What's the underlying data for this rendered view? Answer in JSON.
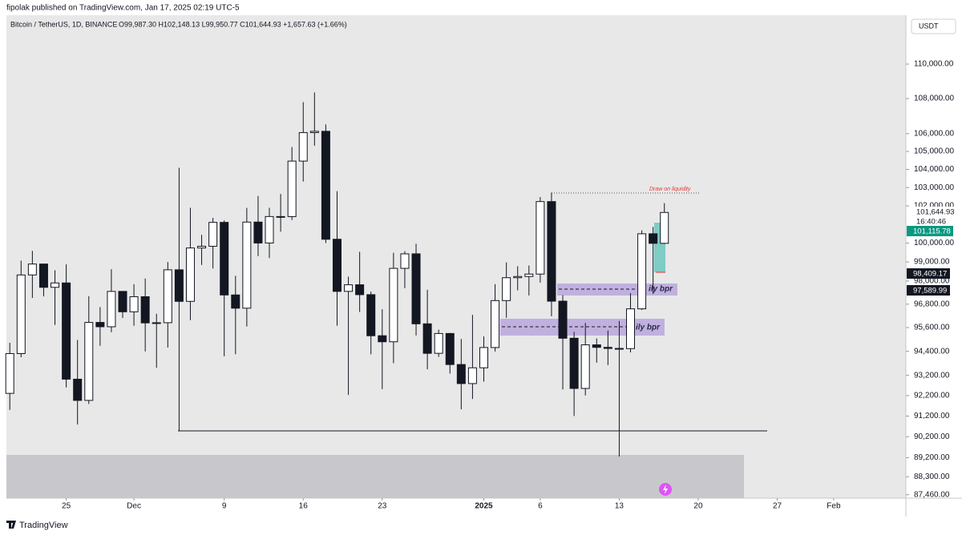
{
  "header": "fipolak published on TradingView.com, Jan 17, 2025 02:19 UTC-5",
  "footer": "TradingView",
  "chart_data": {
    "type": "candlestick",
    "title": "Bitcoin / TetherUS, 1D, BINANCE",
    "ohlc_line": "O99,987.30 H102,148.13 L99,950.77 C101,644.93 +1,657.63 (+1.66%)",
    "currency": "USDT",
    "log_scale": true,
    "up_color": "#ffffff",
    "down_color": "#131722",
    "border_color": "#131722",
    "open": [
      92310,
      94286,
      98317,
      98892,
      97672,
      97900,
      93010,
      91965,
      95863,
      95643,
      97460,
      96407,
      97185,
      95840,
      95849,
      98587,
      96945,
      99740,
      99831,
      101109,
      97276,
      96593,
      101125,
      100004,
      101424,
      101420,
      104463,
      106058,
      106133,
      100204,
      97461,
      97805,
      97291,
      95186,
      94881,
      98663,
      99429,
      95792,
      94299,
      95300,
      93738,
      92792,
      93576,
      94591,
      96984,
      98174,
      98236,
      98363,
      102235,
      96954,
      95060,
      92552,
      94726,
      94599,
      94545,
      94536,
      96560,
      100497,
      99987
    ],
    "high": [
      94831,
      99073,
      99588,
      98767,
      98564,
      98871,
      94973,
      97208,
      96650,
      98619,
      97463,
      97836,
      98130,
      96305,
      99000,
      104088,
      101898,
      100439,
      101351,
      101215,
      98270,
      101888,
      102540,
      101895,
      102650,
      105250,
      107793,
      108353,
      106524,
      102800,
      98233,
      99540,
      97448,
      96538,
      99487,
      99569,
      99963,
      97544,
      95500,
      95330,
      95024,
      96250,
      95151,
      97839,
      98976,
      98778,
      98813,
      102480,
      102724,
      97268,
      95382,
      95836,
      95050,
      95450,
      95940,
      97371,
      100681,
      100866,
      102148
    ],
    "low": [
      91500,
      94100,
      97122,
      97200,
      95734,
      92600,
      90791,
      91792,
      94677,
      95364,
      96092,
      95693,
      94395,
      93578,
      94587,
      90500,
      95981,
      98844,
      98657,
      94150,
      94256,
      95658,
      99311,
      99205,
      100609,
      101237,
      103333,
      105321,
      100000,
      95700,
      92232,
      96398,
      94250,
      92520,
      93806,
      97632,
      95199,
      93500,
      94120,
      93290,
      91530,
      92033,
      92888,
      94392,
      96100,
      97514,
      97250,
      97920,
      96181,
      92500,
      91203,
      92206,
      93831,
      93711,
      89256,
      94346,
      96500,
      97335,
      99950
    ],
    "close": [
      94286,
      98317,
      98892,
      97672,
      97900,
      93010,
      91965,
      95863,
      95643,
      97460,
      96407,
      97185,
      95840,
      95849,
      98587,
      96945,
      99740,
      99831,
      101109,
      97276,
      96593,
      101125,
      100004,
      101424,
      101420,
      104463,
      106058,
      106133,
      100204,
      97461,
      97805,
      97291,
      95186,
      94881,
      98663,
      99429,
      95792,
      94299,
      95300,
      93738,
      92792,
      93576,
      94591,
      96984,
      98174,
      98236,
      98363,
      102235,
      96954,
      95060,
      92552,
      94726,
      94599,
      94545,
      94536,
      96560,
      100497,
      99987,
      101644
    ],
    "xlim": [
      -0.3,
      79.4
    ],
    "xticks": [
      {
        "value": 5,
        "label": "25"
      },
      {
        "value": 11,
        "label": "Dec"
      },
      {
        "value": 19,
        "label": "9"
      },
      {
        "value": 26,
        "label": "16"
      },
      {
        "value": 33,
        "label": "23"
      },
      {
        "value": 42,
        "label": "2025"
      },
      {
        "value": 47,
        "label": "6"
      },
      {
        "value": 54,
        "label": "13"
      },
      {
        "value": 61,
        "label": "20"
      },
      {
        "value": 68,
        "label": "27"
      },
      {
        "value": 73,
        "label": "Feb"
      }
    ],
    "ylim": [
      87300,
      112900
    ],
    "yticks": [
      {
        "value": 110000,
        "label": "110,000.00"
      },
      {
        "value": 108000,
        "label": "108,000.00"
      },
      {
        "value": 106000,
        "label": "106,000.00"
      },
      {
        "value": 105000,
        "label": "105,000.00"
      },
      {
        "value": 104000,
        "label": "104,000.00"
      },
      {
        "value": 103000,
        "label": "103,000.00"
      },
      {
        "value": 102000,
        "label": "102,000.00"
      },
      {
        "value": 100000,
        "label": "100,000.00"
      },
      {
        "value": 99000,
        "label": "99,000.00"
      },
      {
        "value": 98000,
        "label": "98,000.00"
      },
      {
        "value": 96800,
        "label": "96,800.00"
      },
      {
        "value": 95600,
        "label": "95,600.00"
      },
      {
        "value": 94400,
        "label": "94,400.00"
      },
      {
        "value": 93200,
        "label": "93,200.00"
      },
      {
        "value": 92200,
        "label": "92,200.00"
      },
      {
        "value": 91200,
        "label": "91,200.00"
      },
      {
        "value": 90200,
        "label": "90,200.00"
      },
      {
        "value": 89200,
        "label": "89,200.00"
      },
      {
        "value": 88300,
        "label": "88,300.00"
      },
      {
        "value": 87460,
        "label": "87,460.00"
      }
    ],
    "annotations": [
      "Draw on liquidity",
      "ily bpr",
      "ily bpr"
    ],
    "price_labels": [
      "101,644.93",
      "16:40:46",
      "101,115.78",
      "98,409.17",
      "97,589.99"
    ]
  }
}
